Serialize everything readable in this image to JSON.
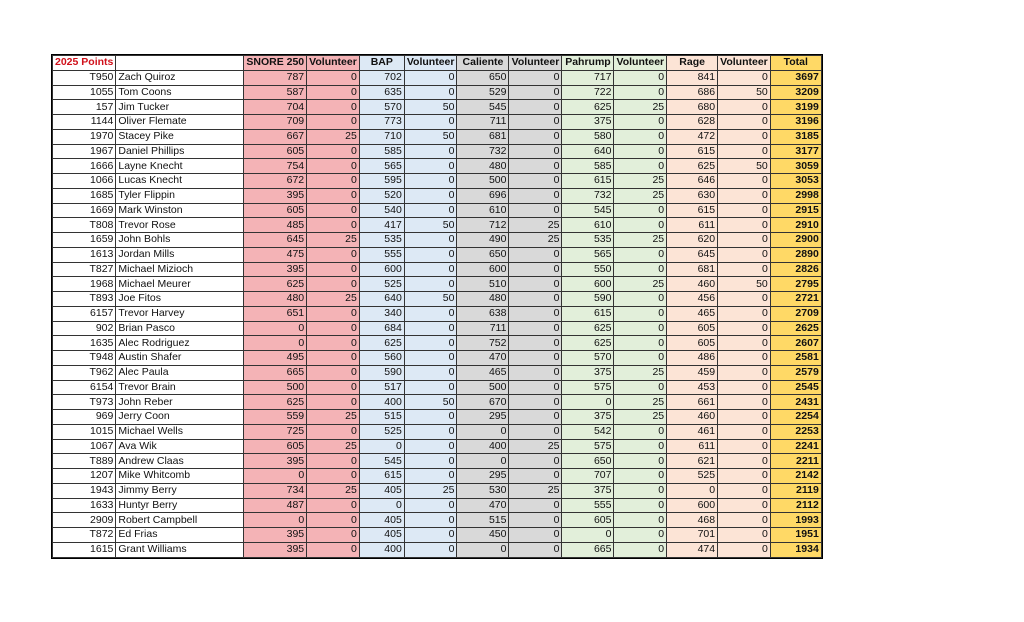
{
  "header": {
    "title": "2025 Points",
    "columns": [
      "SNORE 250",
      "Volunteer",
      "BAP",
      "Volunteer",
      "Caliente",
      "Volunteer",
      "Pahrump",
      "Volunteer",
      "Rage",
      "Volunteer",
      "Total"
    ]
  },
  "colors": {
    "snore": "#f4b3b6",
    "bap": "#dde9f5",
    "caliente": "#d9d9d9",
    "pahrump": "#e2efda",
    "rage": "#fce4d6",
    "total": "#ffd966",
    "title": "#d0101a"
  },
  "rows": [
    [
      "T950",
      "Zach Quiroz",
      "787",
      "0",
      "702",
      "0",
      "650",
      "0",
      "717",
      "0",
      "841",
      "0",
      "3697"
    ],
    [
      "1055",
      "Tom Coons",
      "587",
      "0",
      "635",
      "0",
      "529",
      "0",
      "722",
      "0",
      "686",
      "50",
      "3209"
    ],
    [
      "157",
      "Jim Tucker",
      "704",
      "0",
      "570",
      "50",
      "545",
      "0",
      "625",
      "25",
      "680",
      "0",
      "3199"
    ],
    [
      "1144",
      "Oliver Flemate",
      "709",
      "0",
      "773",
      "0",
      "711",
      "0",
      "375",
      "0",
      "628",
      "0",
      "3196"
    ],
    [
      "1970",
      "Stacey Pike",
      "667",
      "25",
      "710",
      "50",
      "681",
      "0",
      "580",
      "0",
      "472",
      "0",
      "3185"
    ],
    [
      "1967",
      "Daniel Phillips",
      "605",
      "0",
      "585",
      "0",
      "732",
      "0",
      "640",
      "0",
      "615",
      "0",
      "3177"
    ],
    [
      "1666",
      "Layne Knecht",
      "754",
      "0",
      "565",
      "0",
      "480",
      "0",
      "585",
      "0",
      "625",
      "50",
      "3059"
    ],
    [
      "1066",
      "Lucas Knecht",
      "672",
      "0",
      "595",
      "0",
      "500",
      "0",
      "615",
      "25",
      "646",
      "0",
      "3053"
    ],
    [
      "1685",
      "Tyler Flippin",
      "395",
      "0",
      "520",
      "0",
      "696",
      "0",
      "732",
      "25",
      "630",
      "0",
      "2998"
    ],
    [
      "1669",
      "Mark Winston",
      "605",
      "0",
      "540",
      "0",
      "610",
      "0",
      "545",
      "0",
      "615",
      "0",
      "2915"
    ],
    [
      "T808",
      "Trevor Rose",
      "485",
      "0",
      "417",
      "50",
      "712",
      "25",
      "610",
      "0",
      "611",
      "0",
      "2910"
    ],
    [
      "1659",
      "John Bohls",
      "645",
      "25",
      "535",
      "0",
      "490",
      "25",
      "535",
      "25",
      "620",
      "0",
      "2900"
    ],
    [
      "1613",
      "Jordan Mills",
      "475",
      "0",
      "555",
      "0",
      "650",
      "0",
      "565",
      "0",
      "645",
      "0",
      "2890"
    ],
    [
      "T827",
      "Michael Mizioch",
      "395",
      "0",
      "600",
      "0",
      "600",
      "0",
      "550",
      "0",
      "681",
      "0",
      "2826"
    ],
    [
      "1968",
      "Michael Meurer",
      "625",
      "0",
      "525",
      "0",
      "510",
      "0",
      "600",
      "25",
      "460",
      "50",
      "2795"
    ],
    [
      "T893",
      "Joe Fitos",
      "480",
      "25",
      "640",
      "50",
      "480",
      "0",
      "590",
      "0",
      "456",
      "0",
      "2721"
    ],
    [
      "6157",
      "Trevor Harvey",
      "651",
      "0",
      "340",
      "0",
      "638",
      "0",
      "615",
      "0",
      "465",
      "0",
      "2709"
    ],
    [
      "902",
      "Brian Pasco",
      "0",
      "0",
      "684",
      "0",
      "711",
      "0",
      "625",
      "0",
      "605",
      "0",
      "2625"
    ],
    [
      "1635",
      "Alec Rodriguez",
      "0",
      "0",
      "625",
      "0",
      "752",
      "0",
      "625",
      "0",
      "605",
      "0",
      "2607"
    ],
    [
      "T948",
      "Austin Shafer",
      "495",
      "0",
      "560",
      "0",
      "470",
      "0",
      "570",
      "0",
      "486",
      "0",
      "2581"
    ],
    [
      "T962",
      "Alec Paula",
      "665",
      "0",
      "590",
      "0",
      "465",
      "0",
      "375",
      "25",
      "459",
      "0",
      "2579"
    ],
    [
      "6154",
      "Trevor Brain",
      "500",
      "0",
      "517",
      "0",
      "500",
      "0",
      "575",
      "0",
      "453",
      "0",
      "2545"
    ],
    [
      "T973",
      "John Reber",
      "625",
      "0",
      "400",
      "50",
      "670",
      "0",
      "0",
      "25",
      "661",
      "0",
      "2431"
    ],
    [
      "969",
      "Jerry Coon",
      "559",
      "25",
      "515",
      "0",
      "295",
      "0",
      "375",
      "25",
      "460",
      "0",
      "2254"
    ],
    [
      "1015",
      "Michael Wells",
      "725",
      "0",
      "525",
      "0",
      "0",
      "0",
      "542",
      "0",
      "461",
      "0",
      "2253"
    ],
    [
      "1067",
      "Ava Wik",
      "605",
      "25",
      "0",
      "0",
      "400",
      "25",
      "575",
      "0",
      "611",
      "0",
      "2241"
    ],
    [
      "T889",
      "Andrew Claas",
      "395",
      "0",
      "545",
      "0",
      "0",
      "0",
      "650",
      "0",
      "621",
      "0",
      "2211"
    ],
    [
      "1207",
      "Mike Whitcomb",
      "0",
      "0",
      "615",
      "0",
      "295",
      "0",
      "707",
      "0",
      "525",
      "0",
      "2142"
    ],
    [
      "1943",
      "Jimmy Berry",
      "734",
      "25",
      "405",
      "25",
      "530",
      "25",
      "375",
      "0",
      "0",
      "0",
      "2119"
    ],
    [
      "1633",
      "Huntyr Berry",
      "487",
      "0",
      "0",
      "0",
      "470",
      "0",
      "555",
      "0",
      "600",
      "0",
      "2112"
    ],
    [
      "2909",
      "Robert Campbell",
      "0",
      "0",
      "405",
      "0",
      "515",
      "0",
      "605",
      "0",
      "468",
      "0",
      "1993"
    ],
    [
      "T872",
      "Ed Frias",
      "395",
      "0",
      "405",
      "0",
      "450",
      "0",
      "0",
      "0",
      "701",
      "0",
      "1951"
    ],
    [
      "1615",
      "Grant Williams",
      "395",
      "0",
      "400",
      "0",
      "0",
      "0",
      "665",
      "0",
      "474",
      "0",
      "1934"
    ]
  ]
}
